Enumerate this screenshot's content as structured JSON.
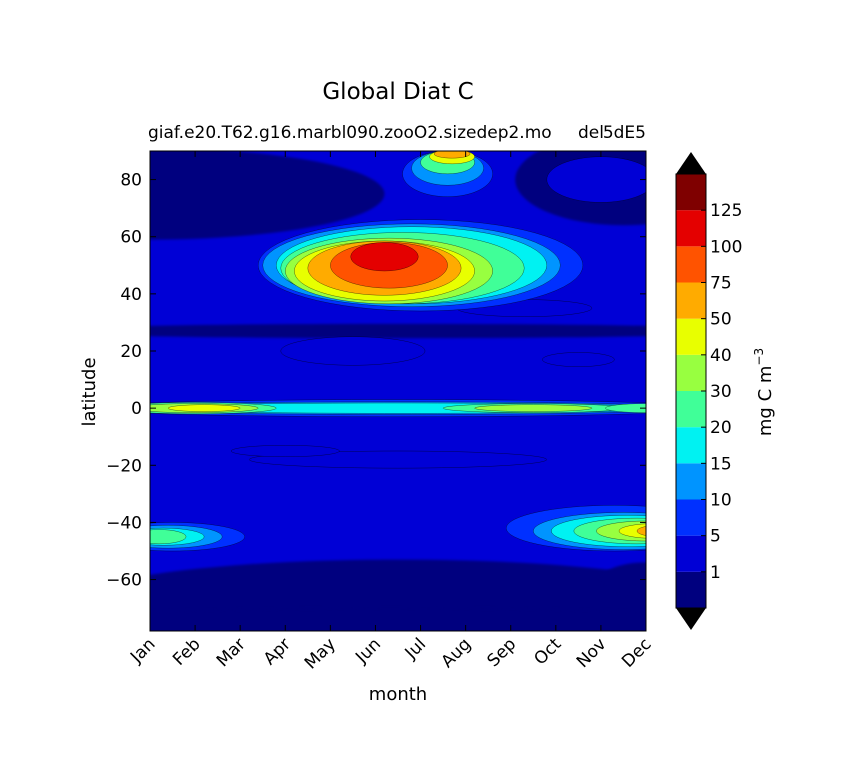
{
  "chart_data": {
    "type": "heatmap",
    "title": "Global Diat C",
    "subtitle_left": "giaf.e20.T62.g16.marbl090.zooO2.sizedep2.mo",
    "subtitle_right": "5dE5",
    "subtitle_overlap": "del",
    "xlabel": "month",
    "ylabel": "latitude",
    "x_categories": [
      "Jan",
      "Feb",
      "Mar",
      "Apr",
      "May",
      "Jun",
      "Jul",
      "Aug",
      "Sep",
      "Oct",
      "Nov",
      "Dec"
    ],
    "ylim": [
      -78,
      90
    ],
    "y_ticks": [
      80,
      60,
      40,
      20,
      0,
      -20,
      -40,
      -60
    ],
    "y_tick_labels": [
      "80",
      "60",
      "40",
      "20",
      "0",
      "−20",
      "−40",
      "−60"
    ],
    "grid": false,
    "colorbar": {
      "label": "mg C m",
      "label_exponent": "−3",
      "levels": [
        0,
        1,
        5,
        10,
        15,
        20,
        30,
        40,
        50,
        75,
        100,
        125,
        150
      ],
      "tick_labels": [
        "1",
        "5",
        "10",
        "15",
        "20",
        "30",
        "40",
        "50",
        "75",
        "100",
        "125"
      ],
      "colors": [
        "#00007f",
        "#0000d6",
        "#0030ff",
        "#0094ff",
        "#00f2f2",
        "#40ff98",
        "#98ff40",
        "#e8ff00",
        "#ffab00",
        "#ff5300",
        "#e40000",
        "#7f0000"
      ],
      "under_color": "#000000",
      "over_color": "#000000",
      "extend": "both"
    },
    "features": [
      {
        "level": 1,
        "month": 4.5,
        "lat": 20,
        "w": 1.6,
        "h": 5
      },
      {
        "level": 1,
        "month": 8.3,
        "lat": 35,
        "w": 1.5,
        "h": 3
      },
      {
        "level": 1,
        "month": 9.5,
        "lat": 17,
        "w": 0.8,
        "h": 2.5
      },
      {
        "level": 1,
        "month": 10.0,
        "lat": 80,
        "w": 1.2,
        "h": 8
      },
      {
        "level": 2,
        "month": 6.6,
        "lat": 82,
        "w": 1.0,
        "h": 8
      },
      {
        "level": 3,
        "month": 6.6,
        "lat": 84,
        "w": 0.8,
        "h": 6
      },
      {
        "level": 5,
        "month": 6.6,
        "lat": 86,
        "w": 0.6,
        "h": 4
      },
      {
        "level": 7,
        "month": 6.7,
        "lat": 88,
        "w": 0.5,
        "h": 2.5
      },
      {
        "level": 8,
        "month": 6.7,
        "lat": 89,
        "w": 0.4,
        "h": 1.5
      },
      {
        "level": 2,
        "month": 6.0,
        "lat": 50,
        "w": 3.6,
        "h": 16
      },
      {
        "level": 3,
        "month": 5.8,
        "lat": 50,
        "w": 3.3,
        "h": 14.5
      },
      {
        "level": 4,
        "month": 5.8,
        "lat": 50,
        "w": 3.0,
        "h": 13.5
      },
      {
        "level": 5,
        "month": 5.6,
        "lat": 49,
        "w": 2.7,
        "h": 12.5
      },
      {
        "level": 6,
        "month": 5.3,
        "lat": 48,
        "w": 2.3,
        "h": 11.5
      },
      {
        "level": 7,
        "month": 5.2,
        "lat": 48,
        "w": 2.0,
        "h": 10.5
      },
      {
        "level": 8,
        "month": 5.2,
        "lat": 49,
        "w": 1.7,
        "h": 9.5
      },
      {
        "level": 9,
        "month": 5.3,
        "lat": 50,
        "w": 1.3,
        "h": 8
      },
      {
        "level": 10,
        "month": 5.2,
        "lat": 53,
        "w": 0.75,
        "h": 5
      },
      {
        "level": 2,
        "month": 5.5,
        "lat": 0,
        "w": 7.0,
        "h": 3
      },
      {
        "level": 3,
        "month": 5.5,
        "lat": 0,
        "w": 6.5,
        "h": 2.2
      },
      {
        "level": 4,
        "month": 5.5,
        "lat": 0,
        "w": 6.0,
        "h": 1.8
      },
      {
        "level": 5,
        "month": 1.0,
        "lat": 0,
        "w": 1.8,
        "h": 2
      },
      {
        "level": 6,
        "month": 1.0,
        "lat": 0,
        "w": 1.4,
        "h": 1.6
      },
      {
        "level": 7,
        "month": 1.2,
        "lat": 0,
        "w": 0.8,
        "h": 1.2
      },
      {
        "level": 5,
        "month": 8.5,
        "lat": 0,
        "w": 2.0,
        "h": 1.6
      },
      {
        "level": 6,
        "month": 8.5,
        "lat": 0,
        "w": 1.3,
        "h": 1.2
      },
      {
        "level": 5,
        "month": 11.0,
        "lat": 0,
        "w": 0.9,
        "h": 1.6
      },
      {
        "level": 1,
        "month": 5.5,
        "lat": -18,
        "w": 3.3,
        "h": 3
      },
      {
        "level": 1,
        "month": 3.0,
        "lat": -15,
        "w": 1.2,
        "h": 2
      },
      {
        "level": 2,
        "month": 10.3,
        "lat": -42,
        "w": 2.4,
        "h": 8
      },
      {
        "level": 3,
        "month": 10.5,
        "lat": -43,
        "w": 2.0,
        "h": 6.5
      },
      {
        "level": 4,
        "month": 10.6,
        "lat": -43,
        "w": 1.7,
        "h": 5.5
      },
      {
        "level": 5,
        "month": 10.8,
        "lat": -43,
        "w": 1.4,
        "h": 4.5
      },
      {
        "level": 6,
        "month": 11.0,
        "lat": -43,
        "w": 1.1,
        "h": 3.5
      },
      {
        "level": 7,
        "month": 11.2,
        "lat": -43,
        "w": 0.8,
        "h": 2.6
      },
      {
        "level": 8,
        "month": 11.3,
        "lat": -43,
        "w": 0.5,
        "h": 2
      },
      {
        "level": 2,
        "month": 0.5,
        "lat": -45,
        "w": 1.6,
        "h": 5
      },
      {
        "level": 3,
        "month": 0.4,
        "lat": -45,
        "w": 1.2,
        "h": 4
      },
      {
        "level": 4,
        "month": 0.3,
        "lat": -45,
        "w": 0.9,
        "h": 3
      },
      {
        "level": 5,
        "month": 0.2,
        "lat": -45,
        "w": 0.6,
        "h": 2.5
      }
    ]
  }
}
